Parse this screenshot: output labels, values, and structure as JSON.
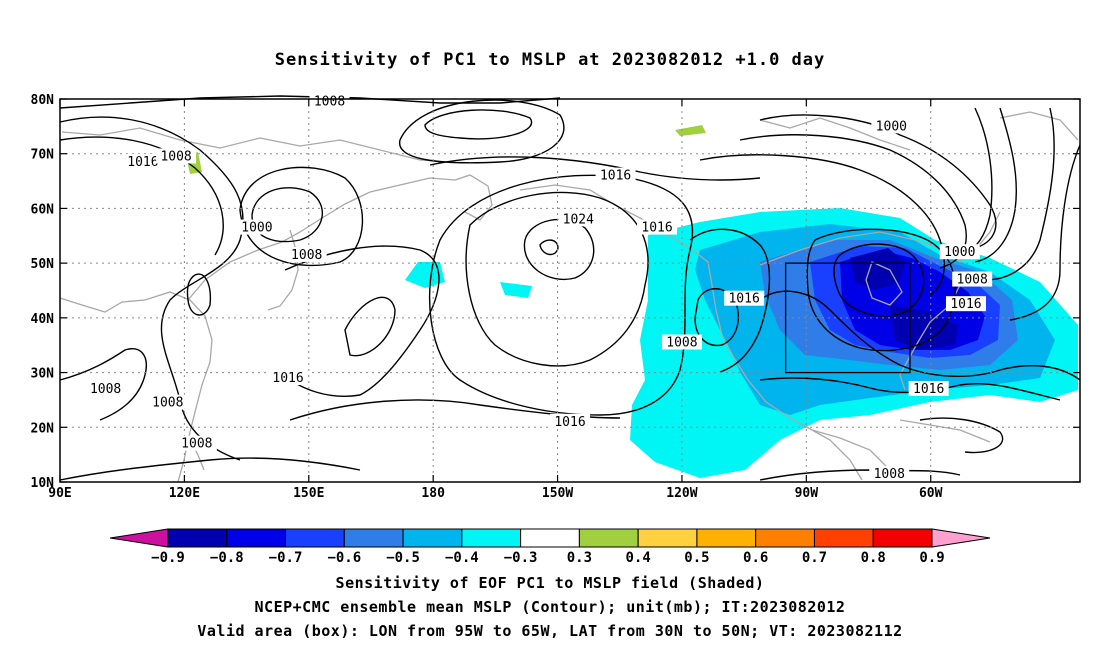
{
  "title": "Sensitivity of PC1 to MSLP at 2023082012 +1.0 day",
  "map": {
    "lat_labels": [
      "80N",
      "70N",
      "60N",
      "50N",
      "40N",
      "30N",
      "20N",
      "10N"
    ],
    "lon_labels": [
      "90E",
      "120E",
      "150E",
      "180",
      "150W",
      "120W",
      "90W",
      "60W"
    ],
    "contour_labels": [
      {
        "text": "1008",
        "lon": 155,
        "lat": 79.5
      },
      {
        "text": "1000",
        "lon": 290.5,
        "lat": 75
      },
      {
        "text": "1016",
        "lon": 110,
        "lat": 68.5
      },
      {
        "text": "1008",
        "lon": 118,
        "lat": 69.5
      },
      {
        "text": "1016",
        "lon": 224,
        "lat": 66
      },
      {
        "text": "1000",
        "lon": 137.5,
        "lat": 56.5
      },
      {
        "text": "1024",
        "lon": 215,
        "lat": 58
      },
      {
        "text": "1016",
        "lon": 234,
        "lat": 56.5
      },
      {
        "text": "1008",
        "lon": 149.5,
        "lat": 51.5
      },
      {
        "text": "1000",
        "lon": 307,
        "lat": 52
      },
      {
        "text": "1008",
        "lon": 310,
        "lat": 47
      },
      {
        "text": "1016",
        "lon": 255,
        "lat": 43.5
      },
      {
        "text": "1016",
        "lon": 308.5,
        "lat": 42.5
      },
      {
        "text": "1008",
        "lon": 240,
        "lat": 35.5
      },
      {
        "text": "1016",
        "lon": 145,
        "lat": 29
      },
      {
        "text": "1008",
        "lon": 101,
        "lat": 27
      },
      {
        "text": "1016",
        "lon": 299.5,
        "lat": 27
      },
      {
        "text": "1008",
        "lon": 116,
        "lat": 24.5
      },
      {
        "text": "1016",
        "lon": 213,
        "lat": 21
      },
      {
        "text": "1008",
        "lon": 123,
        "lat": 17
      },
      {
        "text": "1008",
        "lon": 290,
        "lat": 11.5
      }
    ],
    "valid_box": {
      "lon_min": 265,
      "lon_max": 295,
      "lat_min": 30,
      "lat_max": 50
    }
  },
  "colorbar": {
    "labels": [
      "-0.9",
      "-0.8",
      "-0.7",
      "-0.6",
      "-0.5",
      "-0.4",
      "-0.3",
      "0.3",
      "0.4",
      "0.5",
      "0.6",
      "0.7",
      "0.8",
      "0.9"
    ],
    "colors": [
      "#0000b0",
      "#0000e6",
      "#1a40ff",
      "#2e7de8",
      "#00b4ee",
      "#00f5f5",
      "#ffffff",
      "#a0d040",
      "#ffd040",
      "#ffb000",
      "#ff8000",
      "#ff4000",
      "#f00000"
    ],
    "low_end_color": "#cc10a0",
    "high_end_color": "#ffa0d0"
  },
  "caption": {
    "line1": "Sensitivity of EOF PC1 to MSLP field (Shaded)",
    "line2": "NCEP+CMC ensemble mean MSLP (Contour); unit(mb); IT:2023082012",
    "line3": "Valid area (box): LON from 95W to 65W, LAT from 30N to 50N; VT: 2023082112"
  }
}
